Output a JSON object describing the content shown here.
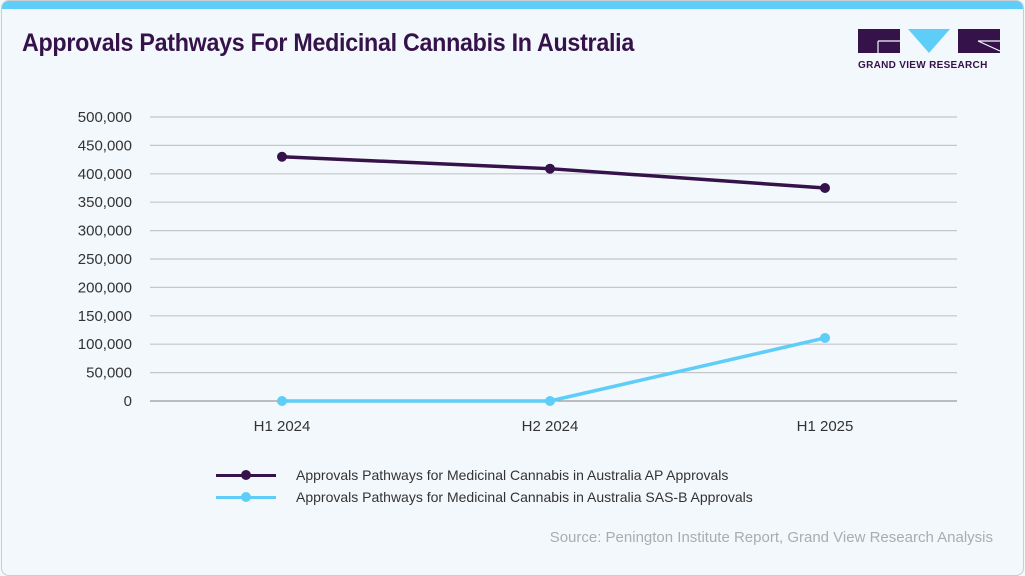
{
  "title": "Approvals Pathways For Medicinal Cannabis In Australia",
  "logo": {
    "text": "GRAND VIEW RESEARCH"
  },
  "source": "Source: Penington Institute Report, Grand View Research Analysis",
  "colors": {
    "accent": "#5ecdf7",
    "brand": "#35124a"
  },
  "chart_data": {
    "type": "line",
    "title": "Approvals Pathways For Medicinal Cannabis In Australia",
    "categories": [
      "H1 2024",
      "H2 2024",
      "H1 2025"
    ],
    "ylim": [
      0,
      500000
    ],
    "yticks": [
      "0",
      "50,000",
      "100,000",
      "150,000",
      "200,000",
      "250,000",
      "300,000",
      "350,000",
      "400,000",
      "450,000",
      "500,000"
    ],
    "grid": true,
    "legend_position": "bottom",
    "series": [
      {
        "name": "Approvals Pathways for Medicinal Cannabis in Australia AP Approvals",
        "color": "#35124a",
        "values": [
          430000,
          409000,
          375000
        ]
      },
      {
        "name": "Approvals Pathways for Medicinal Cannabis in Australia SAS-B Approvals",
        "color": "#5ecdf7",
        "values": [
          0,
          0,
          111000
        ]
      }
    ]
  }
}
